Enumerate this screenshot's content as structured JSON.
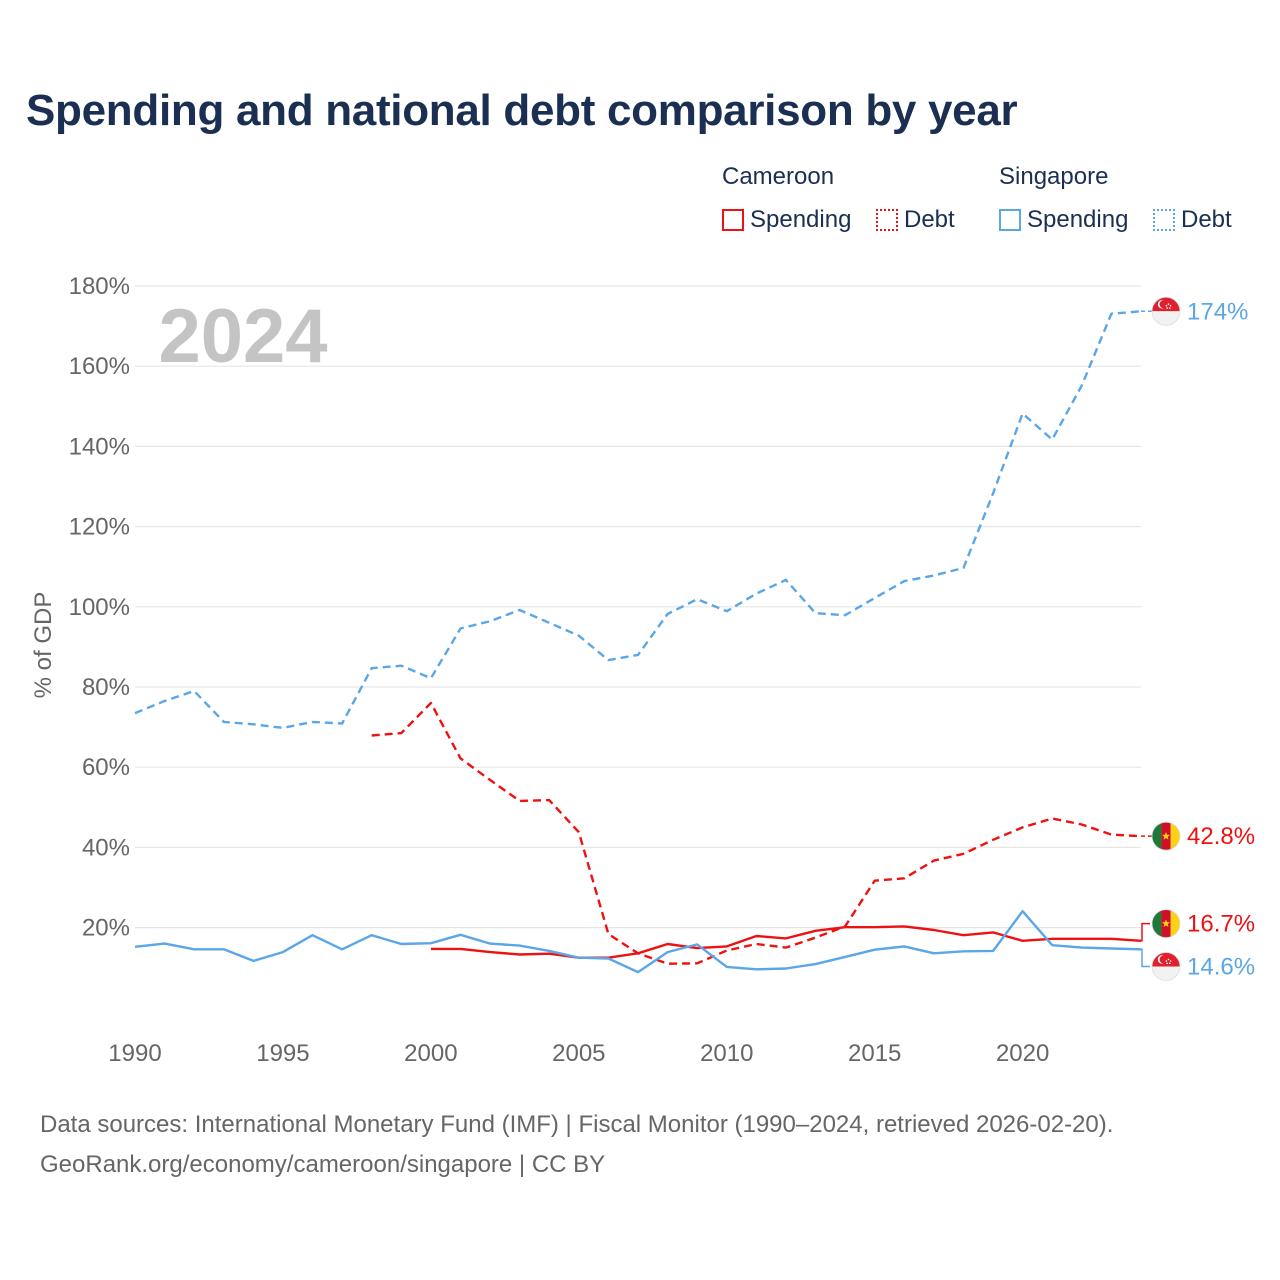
{
  "title": "Spending and national debt comparison by year",
  "legend": {
    "groups": [
      {
        "country": "Cameroon",
        "items": [
          {
            "label": "Spending",
            "style": "solid"
          },
          {
            "label": "Debt",
            "style": "dotted"
          }
        ],
        "color": "#ee1111"
      },
      {
        "country": "Singapore",
        "items": [
          {
            "label": "Spending",
            "style": "solid"
          },
          {
            "label": "Debt",
            "style": "dotted"
          }
        ],
        "color": "#5aa6e6"
      }
    ]
  },
  "year_watermark": "2024",
  "footer": {
    "line1": "Data sources: International Monetary Fund (IMF) | Fiscal Monitor (1990–2024, retrieved 2026-02-20).",
    "line2": "GeoRank.org/economy/cameroon/singapore | CC BY"
  },
  "colors": {
    "cameroon": "#ee1111",
    "singapore": "#5aa6e6",
    "title": "#1b2f52",
    "axis_text": "#666666",
    "watermark": "#c4c4c4",
    "grid": "#e6e6e6"
  },
  "chart_data": {
    "type": "line",
    "title": "Spending and national debt comparison by year",
    "xlabel": "",
    "ylabel": "% of GDP",
    "xlim": [
      1990,
      2024
    ],
    "ylim": [
      -20,
      180
    ],
    "x_ticks": [
      1990,
      1995,
      2000,
      2005,
      2010,
      2015,
      2020
    ],
    "y_ticks": [
      20,
      40,
      60,
      80,
      100,
      120,
      140,
      160,
      180
    ],
    "y_tick_labels": [
      "20%",
      "40%",
      "60%",
      "80%",
      "100%",
      "120%",
      "140%",
      "160%",
      "180%"
    ],
    "grid": true,
    "series": [
      {
        "name": "Singapore Debt",
        "key": "sg_debt",
        "country": "singapore",
        "dash": true,
        "end_label": "174%",
        "points": [
          [
            1990,
            73.5
          ],
          [
            1991,
            76.5
          ],
          [
            1992,
            79
          ],
          [
            1993,
            71.3
          ],
          [
            1994,
            70.7
          ],
          [
            1995,
            69.8
          ],
          [
            1996,
            71.3
          ],
          [
            1997,
            70.9
          ],
          [
            1998,
            84.7
          ],
          [
            1999,
            85.3
          ],
          [
            2000,
            82.2
          ],
          [
            2001,
            94.6
          ],
          [
            2002,
            96.4
          ],
          [
            2003,
            99.2
          ],
          [
            2004,
            96
          ],
          [
            2005,
            92.8
          ],
          [
            2006,
            86.7
          ],
          [
            2007,
            88
          ],
          [
            2008,
            98.2
          ],
          [
            2009,
            101.9
          ],
          [
            2010,
            98.9
          ],
          [
            2011,
            103.3
          ],
          [
            2012,
            106.7
          ],
          [
            2013,
            98.4
          ],
          [
            2014,
            97.9
          ],
          [
            2015,
            102.2
          ],
          [
            2016,
            106.4
          ],
          [
            2017,
            107.8
          ],
          [
            2018,
            109.7
          ],
          [
            2019,
            128.3
          ],
          [
            2020,
            148.2
          ],
          [
            2021,
            141.7
          ],
          [
            2022,
            155.2
          ],
          [
            2023,
            173.1
          ],
          [
            2024,
            173.7
          ]
        ]
      },
      {
        "name": "Cameroon Debt",
        "key": "cm_debt",
        "country": "cameroon",
        "dash": true,
        "end_label": "42.8%",
        "points": [
          [
            1998,
            67.9
          ],
          [
            1999,
            68.5
          ],
          [
            2000,
            76
          ],
          [
            2001,
            62.2
          ],
          [
            2002,
            56.8
          ],
          [
            2003,
            51.6
          ],
          [
            2004,
            51.8
          ],
          [
            2005,
            43.8
          ],
          [
            2006,
            18.4
          ],
          [
            2007,
            13.6
          ],
          [
            2008,
            11
          ],
          [
            2009,
            11.1
          ],
          [
            2010,
            14.3
          ],
          [
            2011,
            15.9
          ],
          [
            2012,
            15
          ],
          [
            2013,
            17.5
          ],
          [
            2014,
            20.3
          ],
          [
            2015,
            31.7
          ],
          [
            2016,
            32.3
          ],
          [
            2017,
            36.7
          ],
          [
            2018,
            38.4
          ],
          [
            2019,
            41.9
          ],
          [
            2020,
            45
          ],
          [
            2021,
            47.2
          ],
          [
            2022,
            45.7
          ],
          [
            2023,
            43.2
          ],
          [
            2024,
            42.8
          ]
        ]
      },
      {
        "name": "Cameroon Spending",
        "key": "cm_spend",
        "country": "cameroon",
        "dash": false,
        "end_label": "16.7%",
        "points": [
          [
            2000,
            14.7
          ],
          [
            2001,
            14.7
          ],
          [
            2002,
            13.9
          ],
          [
            2003,
            13.3
          ],
          [
            2004,
            13.5
          ],
          [
            2005,
            12.5
          ],
          [
            2006,
            12.5
          ],
          [
            2007,
            13.6
          ],
          [
            2008,
            15.9
          ],
          [
            2009,
            14.9
          ],
          [
            2010,
            15.3
          ],
          [
            2011,
            17.9
          ],
          [
            2012,
            17.3
          ],
          [
            2013,
            19.2
          ],
          [
            2014,
            20.1
          ],
          [
            2015,
            20.1
          ],
          [
            2016,
            20.3
          ],
          [
            2017,
            19.4
          ],
          [
            2018,
            18.1
          ],
          [
            2019,
            18.8
          ],
          [
            2020,
            16.7
          ],
          [
            2021,
            17.2
          ],
          [
            2022,
            17.2
          ],
          [
            2023,
            17.2
          ],
          [
            2024,
            16.7
          ]
        ]
      },
      {
        "name": "Singapore Spending",
        "key": "sg_spend",
        "country": "singapore",
        "dash": false,
        "end_label": "14.6%",
        "points": [
          [
            1990,
            15.2
          ],
          [
            1991,
            16
          ],
          [
            1992,
            14.6
          ],
          [
            1993,
            14.6
          ],
          [
            1994,
            11.7
          ],
          [
            1995,
            13.9
          ],
          [
            1996,
            18.1
          ],
          [
            1997,
            14.6
          ],
          [
            1998,
            18.1
          ],
          [
            1999,
            15.9
          ],
          [
            2000,
            16.1
          ],
          [
            2001,
            18.2
          ],
          [
            2002,
            16
          ],
          [
            2003,
            15.5
          ],
          [
            2004,
            14.2
          ],
          [
            2005,
            12.5
          ],
          [
            2006,
            12.3
          ],
          [
            2007,
            8.9
          ],
          [
            2008,
            13.9
          ],
          [
            2009,
            15.8
          ],
          [
            2010,
            10.2
          ],
          [
            2011,
            9.6
          ],
          [
            2012,
            9.8
          ],
          [
            2013,
            10.9
          ],
          [
            2014,
            12.7
          ],
          [
            2015,
            14.5
          ],
          [
            2016,
            15.3
          ],
          [
            2017,
            13.6
          ],
          [
            2018,
            14.1
          ],
          [
            2019,
            14.2
          ],
          [
            2020,
            24.1
          ],
          [
            2021,
            15.6
          ],
          [
            2022,
            15
          ],
          [
            2023,
            14.8
          ],
          [
            2024,
            14.6
          ]
        ]
      }
    ]
  }
}
